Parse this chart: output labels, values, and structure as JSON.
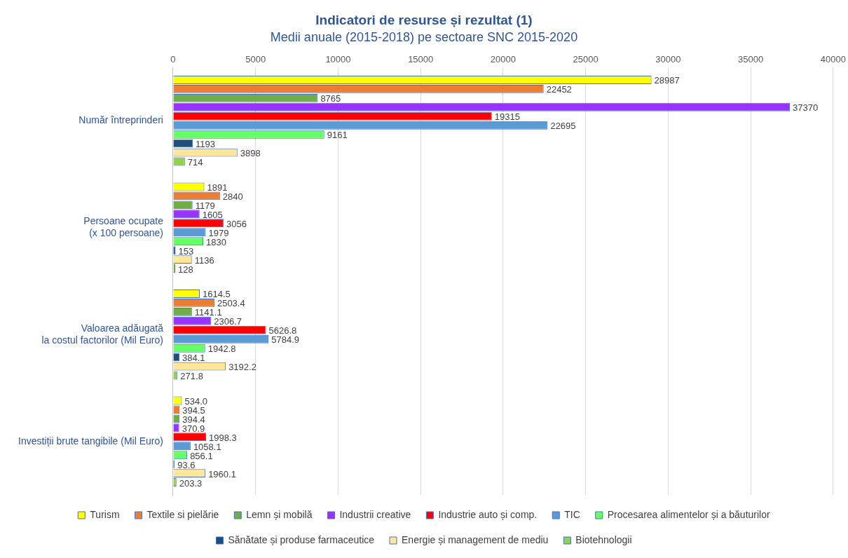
{
  "chart_data": {
    "type": "bar",
    "orientation": "horizontal",
    "title": "Indicatori de resurse și rezultat (1)",
    "subtitle": "Medii anuale (2015-2018) pe sectoare SNC 2015-2020",
    "categories": [
      "Număr întreprinderi",
      "Persoane ocupate\n(x 100 persoane)",
      "Valoarea adăugată\nla costul factorilor (Mil Euro)",
      "Investiții brute tangibile (Mil Euro)"
    ],
    "xlim": [
      0,
      40000
    ],
    "xticks": [
      0,
      5000,
      10000,
      15000,
      20000,
      25000,
      30000,
      35000,
      40000
    ],
    "grid": "x",
    "legend": "bottom",
    "series": [
      {
        "name": "Turism",
        "color": "#ffff00",
        "values": [
          28987,
          1891,
          1614.5,
          534.0
        ],
        "value_labels": [
          "28987",
          "1891",
          "1614.5",
          "534.0"
        ]
      },
      {
        "name": "Textile si pielărie",
        "color": "#ed7d31",
        "values": [
          22452,
          2840,
          2503.4,
          394.5
        ],
        "value_labels": [
          "22452",
          "2840",
          "2503.4",
          "394.5"
        ]
      },
      {
        "name": "Lemn și mobilă",
        "color": "#70ad47",
        "values": [
          8765,
          1179,
          1141.1,
          394.4
        ],
        "value_labels": [
          "8765",
          "1179",
          "1141.1",
          "394.4"
        ]
      },
      {
        "name": "Industrii creative",
        "color": "#9933ff",
        "values": [
          37370,
          1605,
          2306.7,
          370.9
        ],
        "value_labels": [
          "37370",
          "1605",
          "2306.7",
          "370.9"
        ]
      },
      {
        "name": "Industrie auto și comp.",
        "color": "#ff0000",
        "values": [
          19315,
          3056,
          5626.8,
          1998.3
        ],
        "value_labels": [
          "19315",
          "3056",
          "5626.8",
          "1998.3"
        ]
      },
      {
        "name": "TIC",
        "color": "#5b9bd5",
        "values": [
          22695,
          1979,
          5784.9,
          1058.1
        ],
        "value_labels": [
          "22695",
          "1979",
          "5784.9",
          "1058.1"
        ]
      },
      {
        "name": "Procesarea alimentelor și a băuturilor",
        "color": "#66ff66",
        "values": [
          9161,
          1830,
          1942.8,
          856.1
        ],
        "value_labels": [
          "9161",
          "1830",
          "1942.8",
          "856.1"
        ]
      },
      {
        "name": "Sănătate și produse farmaceutice",
        "color": "#1f4e79",
        "values": [
          1193,
          153,
          384.1,
          93.6
        ],
        "value_labels": [
          "1193",
          "153",
          "384.1",
          "93.6"
        ]
      },
      {
        "name": "Energie și management de mediu",
        "color": "#ffe699",
        "values": [
          3898,
          1136,
          3192.2,
          1960.1
        ],
        "value_labels": [
          "3898",
          "1136",
          "3192.2",
          "1960.1"
        ]
      },
      {
        "name": "Biotehnologii",
        "color": "#92d050",
        "values": [
          714,
          128,
          271.8,
          203.3
        ],
        "value_labels": [
          "714",
          "128",
          "271.8",
          "203.3"
        ]
      }
    ]
  }
}
